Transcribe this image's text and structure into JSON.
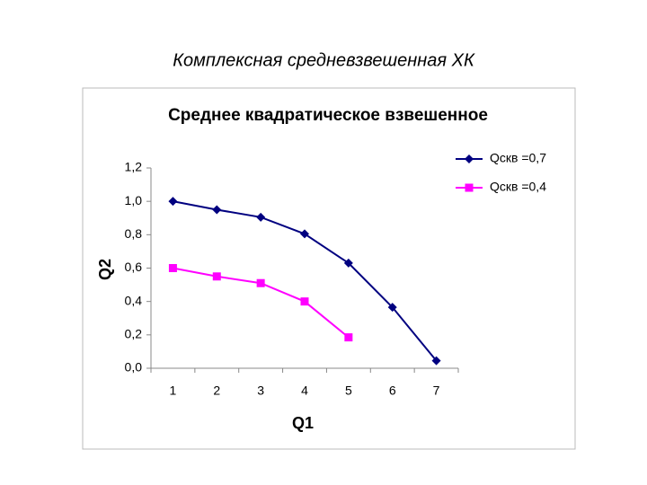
{
  "page_title": "Комплексная средневзвешенная ХК",
  "chart_data": {
    "type": "line",
    "title": "Среднее квадратическое взвешенное",
    "x_label": "Q1",
    "y_label": "Q2",
    "categories": [
      "1",
      "2",
      "3",
      "4",
      "5",
      "6",
      "7"
    ],
    "series": [
      {
        "name": "Qскв =0,7",
        "color": "#000080",
        "marker": "diamond",
        "values": [
          1.0,
          0.95,
          0.905,
          0.805,
          0.63,
          0.365,
          0.045
        ]
      },
      {
        "name": "Qскв =0,4",
        "color": "#ff00ff",
        "marker": "square",
        "values": [
          0.6,
          0.55,
          0.51,
          0.4,
          0.185,
          null,
          null
        ]
      }
    ],
    "ylim": [
      0,
      1.2
    ],
    "yticks": [
      {
        "value": 0,
        "label": "0,0"
      },
      {
        "value": 0.2,
        "label": "0,2"
      },
      {
        "value": 0.4,
        "label": "0,4"
      },
      {
        "value": 0.6,
        "label": "0,6"
      },
      {
        "value": 0.8,
        "label": "0,8"
      },
      {
        "value": 1.0,
        "label": "1,0"
      },
      {
        "value": 1.2,
        "label": "1,2"
      }
    ],
    "grid": false,
    "legend": "top-right"
  }
}
